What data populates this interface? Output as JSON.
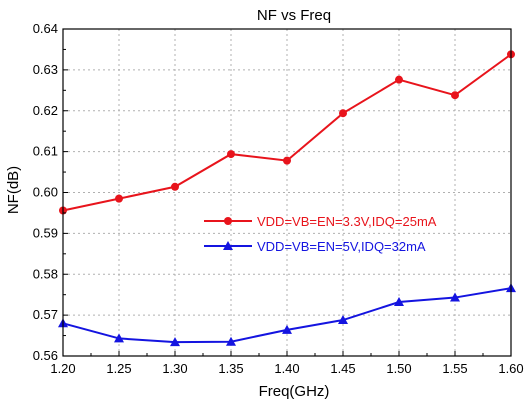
{
  "chart_data": {
    "type": "line",
    "title": "NF vs Freq",
    "xlabel": "Freq(GHz)",
    "ylabel": "NF(dB)",
    "xlim": [
      1.2,
      1.6
    ],
    "ylim": [
      0.56,
      0.64
    ],
    "x_ticks": [
      "1.20",
      "1.25",
      "1.30",
      "1.35",
      "1.40",
      "1.45",
      "1.50",
      "1.55",
      "1.60"
    ],
    "y_ticks": [
      "0.56",
      "0.57",
      "0.58",
      "0.59",
      "0.60",
      "0.61",
      "0.62",
      "0.63",
      "0.64"
    ],
    "grid": true,
    "legend_position": "center-right",
    "x": [
      1.2,
      1.25,
      1.3,
      1.35,
      1.4,
      1.45,
      1.5,
      1.55,
      1.6
    ],
    "series": [
      {
        "name": "VDD=VB=EN=3.3V,IDQ=25mA",
        "color": "#e8141c",
        "marker": "circle",
        "values": [
          0.5956,
          0.5985,
          0.6014,
          0.6094,
          0.6078,
          0.6194,
          0.6276,
          0.6238,
          0.6338
        ]
      },
      {
        "name": "VDD=VB=EN=5V,IDQ=32mA",
        "color": "#1414e0",
        "marker": "triangle",
        "values": [
          0.568,
          0.5643,
          0.5634,
          0.5635,
          0.5664,
          0.5688,
          0.5732,
          0.5743,
          0.5766
        ]
      }
    ]
  }
}
